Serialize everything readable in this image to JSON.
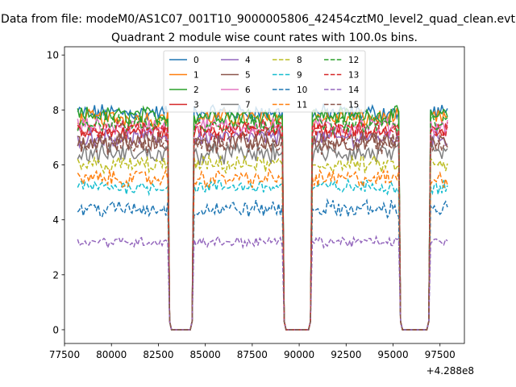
{
  "chart_data": {
    "type": "line",
    "suptitle": "Data from file: modeM0/AS1C07_001T10_9000005806_42454cztM0_level2_quad_clean.evt",
    "title": "Quadrant 2 module wise count rates with 100.0s bins.",
    "xlabel": "",
    "ylabel": "",
    "x_offset_label": "+4.288e8",
    "xlim": [
      77500,
      98800
    ],
    "ylim": [
      -0.5,
      10.3
    ],
    "xticks": [
      77500,
      80000,
      82500,
      85000,
      87500,
      90000,
      92500,
      95000,
      97500
    ],
    "xtick_labels": [
      "77500",
      "80000",
      "82500",
      "85000",
      "87500",
      "90000",
      "92500",
      "95000",
      "97500"
    ],
    "yticks": [
      0,
      2,
      4,
      6,
      8,
      10
    ],
    "ytick_labels": [
      "0",
      "2",
      "4",
      "6",
      "8",
      "10"
    ],
    "grid": false,
    "legend_location": "top-center",
    "x_range": [
      78200,
      97900
    ],
    "gaps": [
      {
        "data_until": 83000,
        "zero_from": 83200,
        "zero_to": 84200,
        "data_from": 84400
      },
      {
        "data_until": 89100,
        "zero_from": 89300,
        "zero_to": 90500,
        "data_from": 90700
      },
      {
        "data_until": 95300,
        "zero_from": 95500,
        "zero_to": 96800,
        "data_from": 97000
      }
    ],
    "series": [
      {
        "name": "0",
        "level": 7.9,
        "noise": 0.25,
        "color": "#1f77b4",
        "dash": "solid"
      },
      {
        "name": "1",
        "level": 7.7,
        "noise": 0.25,
        "color": "#ff7f0e",
        "dash": "solid"
      },
      {
        "name": "2",
        "level": 7.8,
        "noise": 0.25,
        "color": "#2ca02c",
        "dash": "solid"
      },
      {
        "name": "3",
        "level": 7.2,
        "noise": 0.25,
        "color": "#d62728",
        "dash": "solid"
      },
      {
        "name": "4",
        "level": 7.0,
        "noise": 0.25,
        "color": "#9467bd",
        "dash": "solid"
      },
      {
        "name": "5",
        "level": 6.8,
        "noise": 0.3,
        "color": "#8c564b",
        "dash": "solid"
      },
      {
        "name": "6",
        "level": 7.4,
        "noise": 0.25,
        "color": "#e377c2",
        "dash": "solid"
      },
      {
        "name": "7",
        "level": 6.4,
        "noise": 0.3,
        "color": "#7f7f7f",
        "dash": "solid"
      },
      {
        "name": "8",
        "level": 6.0,
        "noise": 0.25,
        "color": "#bcbd22",
        "dash": "dashed"
      },
      {
        "name": "9",
        "level": 5.2,
        "noise": 0.2,
        "color": "#17becf",
        "dash": "dashed"
      },
      {
        "name": "10",
        "level": 4.4,
        "noise": 0.25,
        "color": "#1f77b4",
        "dash": "dashed"
      },
      {
        "name": "11",
        "level": 5.5,
        "noise": 0.25,
        "color": "#ff7f0e",
        "dash": "dashed"
      },
      {
        "name": "12",
        "level": 7.5,
        "noise": 0.25,
        "color": "#2ca02c",
        "dash": "dashed"
      },
      {
        "name": "13",
        "level": 7.3,
        "noise": 0.25,
        "color": "#d62728",
        "dash": "dashed"
      },
      {
        "name": "14",
        "level": 3.2,
        "noise": 0.15,
        "color": "#9467bd",
        "dash": "dashed"
      },
      {
        "name": "15",
        "level": 6.8,
        "noise": 0.3,
        "color": "#8c564b",
        "dash": "dashed"
      }
    ]
  }
}
